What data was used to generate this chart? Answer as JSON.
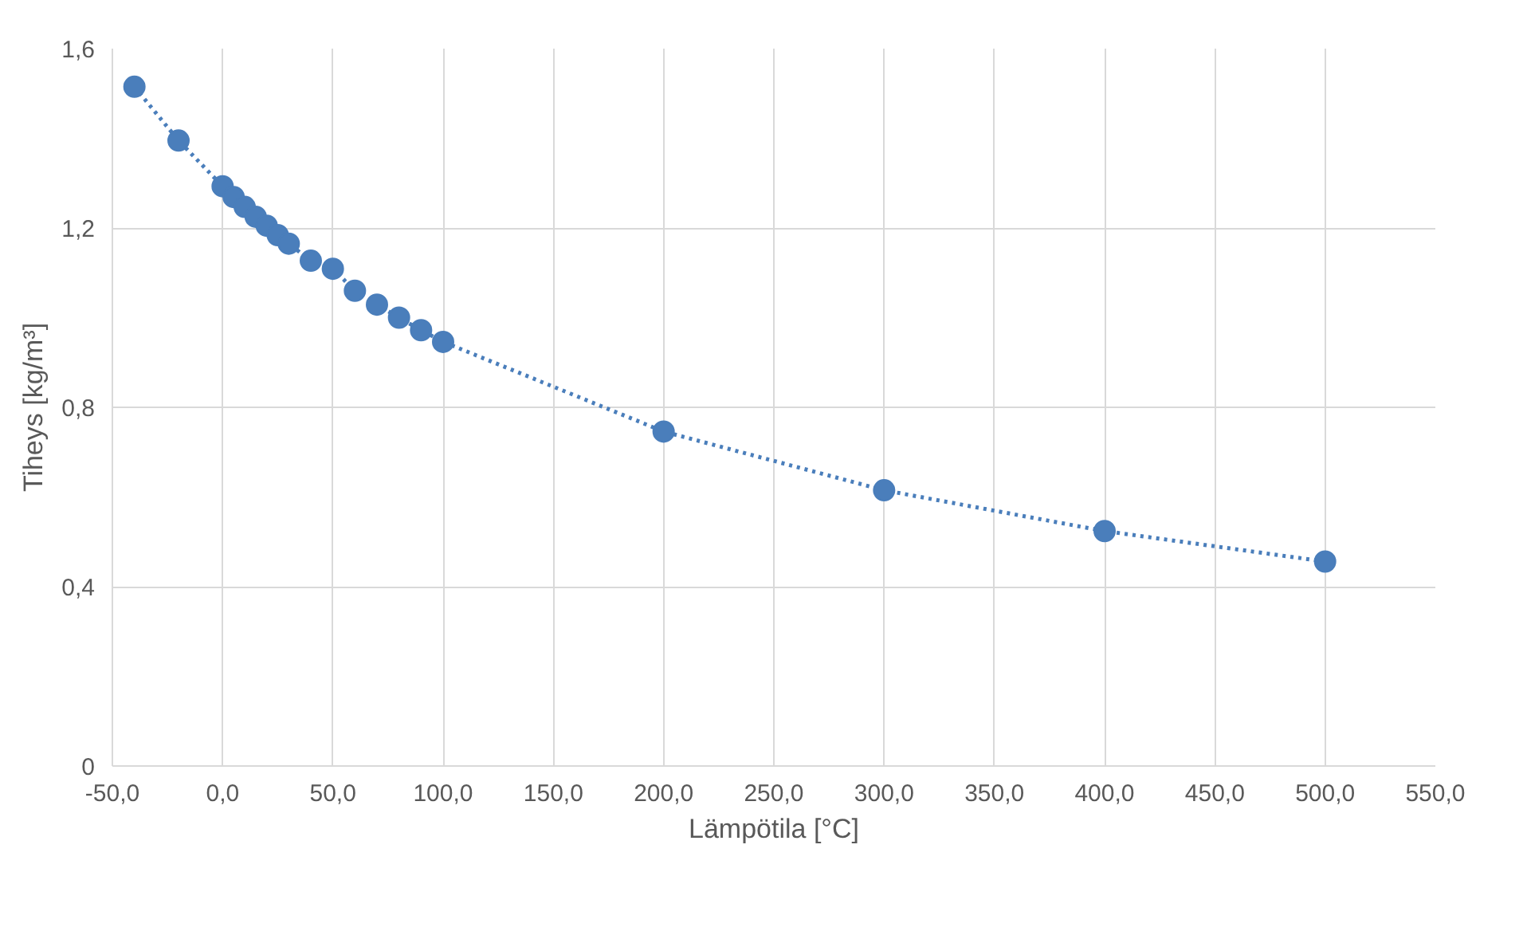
{
  "chart_data": {
    "type": "line",
    "xlabel": "Lämpötila [°C]",
    "ylabel": "Tiheys [kg/m³]",
    "x": [
      -40,
      -20,
      0,
      5,
      10,
      15,
      20,
      25,
      30,
      40,
      50,
      60,
      70,
      80,
      90,
      100,
      200,
      300,
      400,
      500
    ],
    "series": [
      {
        "color": "#4a7ebb",
        "values": [
          1.515,
          1.395,
          1.293,
          1.269,
          1.247,
          1.225,
          1.205,
          1.184,
          1.165,
          1.127,
          1.109,
          1.06,
          1.029,
          1.0,
          0.972,
          0.946,
          0.746,
          0.615,
          0.524,
          0.456
        ],
        "line_style": "dotted"
      }
    ],
    "marker": "circle",
    "grid": true,
    "xlim": [
      -50,
      550
    ],
    "ylim": [
      0,
      1.6
    ],
    "xticks": [
      {
        "value": -50,
        "label": "-50,0"
      },
      {
        "value": 0,
        "label": "0,0"
      },
      {
        "value": 50,
        "label": "50,0"
      },
      {
        "value": 100,
        "label": "100,0"
      },
      {
        "value": 150,
        "label": "150,0"
      },
      {
        "value": 200,
        "label": "200,0"
      },
      {
        "value": 250,
        "label": "250,0"
      },
      {
        "value": 300,
        "label": "300,0"
      },
      {
        "value": 350,
        "label": "350,0"
      },
      {
        "value": 400,
        "label": "400,0"
      },
      {
        "value": 450,
        "label": "450,0"
      },
      {
        "value": 500,
        "label": "500,0"
      },
      {
        "value": 550,
        "label": "550,0"
      }
    ],
    "yticks": [
      0,
      {
        "value": 0.4,
        "label": "0,4"
      },
      {
        "value": 0.8,
        "label": "0,8"
      },
      {
        "value": 1.2,
        "label": "1,2"
      },
      {
        "value": 1.6,
        "label": "1,6"
      }
    ]
  }
}
